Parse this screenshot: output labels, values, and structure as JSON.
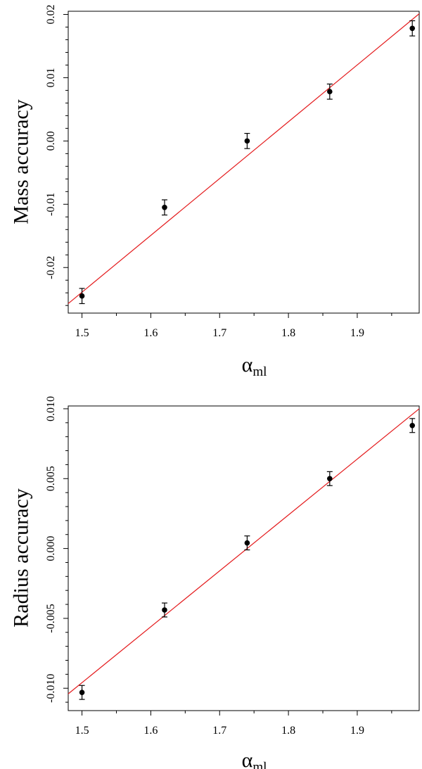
{
  "chart_data": [
    {
      "type": "scatter",
      "xlabel": "α",
      "xlabel_subscript": "ml",
      "ylabel": "Mass accuracy",
      "xlim": [
        1.48,
        1.99
      ],
      "ylim": [
        -0.0272,
        0.0205
      ],
      "x_ticks": [
        1.5,
        1.6,
        1.7,
        1.8,
        1.9
      ],
      "x_tick_labels": [
        "1.5",
        "1.6",
        "1.7",
        "1.8",
        "1.9"
      ],
      "y_ticks": [
        -0.02,
        -0.01,
        0.0,
        0.01,
        0.02
      ],
      "y_tick_labels": [
        "-0.02",
        "-0.01",
        "0.00",
        "0.01",
        "0.02"
      ],
      "series": [
        {
          "x": [
            1.5,
            1.62,
            1.74,
            1.86,
            1.98
          ],
          "y": [
            -0.0245,
            -0.0105,
            0.0,
            0.0078,
            0.0178
          ],
          "err": [
            0.0012,
            0.0012,
            0.0012,
            0.0012,
            0.0012
          ],
          "color": "#000000"
        }
      ],
      "fit_line": {
        "slope": 0.0898,
        "intercept": -0.1586,
        "color": "#e41a1c"
      },
      "grid": false
    },
    {
      "type": "scatter",
      "xlabel": "α",
      "xlabel_subscript": "ml",
      "ylabel": "Radius accuracy",
      "xlim": [
        1.48,
        1.99
      ],
      "ylim": [
        -0.0116,
        0.0102
      ],
      "x_ticks": [
        1.5,
        1.6,
        1.7,
        1.8,
        1.9
      ],
      "x_tick_labels": [
        "1.5",
        "1.6",
        "1.7",
        "1.8",
        "1.9"
      ],
      "y_ticks": [
        -0.01,
        -0.005,
        0.0,
        0.005,
        0.01
      ],
      "y_tick_labels": [
        "-0.010",
        "-0.005",
        "0.000",
        "0.005",
        "0.010"
      ],
      "series": [
        {
          "x": [
            1.5,
            1.62,
            1.74,
            1.86,
            1.98
          ],
          "y": [
            -0.0103,
            -0.0044,
            0.0004,
            0.005,
            0.0088
          ],
          "err": [
            0.0005,
            0.0005,
            0.0005,
            0.0005,
            0.0005
          ],
          "color": "#000000"
        }
      ],
      "fit_line": {
        "slope": 0.04,
        "intercept": -0.0696,
        "color": "#e41a1c"
      },
      "grid": false
    }
  ]
}
